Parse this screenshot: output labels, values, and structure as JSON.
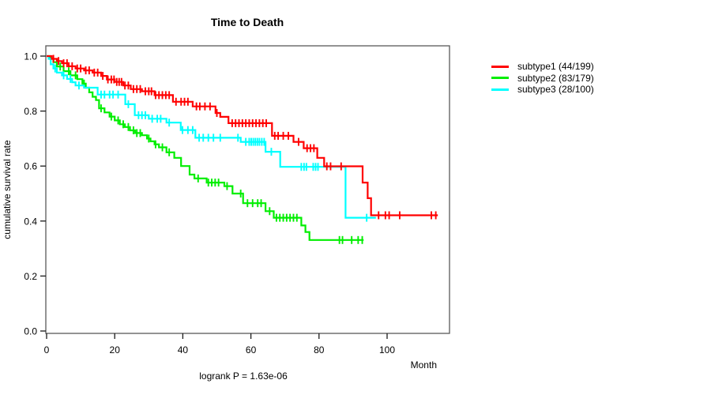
{
  "figure": {
    "title": "Time to Death",
    "annotation": "logrank P = 1.63e-06",
    "x_axis_unit": "Month"
  },
  "chart_data": {
    "type": "line",
    "subtype": "kaplan-meier-survival-steps",
    "title": "Time to Death",
    "xlabel": "Month",
    "ylabel": "cumulative survival rate",
    "annotation": "logrank P = 1.63e-06",
    "xlim": [
      0,
      118
    ],
    "ylim": [
      0.0,
      1.0
    ],
    "x_ticks": [
      0,
      20,
      40,
      60,
      80,
      100
    ],
    "y_tick_labels": [
      "0.0",
      "0.2",
      "0.4",
      "0.6",
      "0.8",
      "1.0"
    ],
    "grid": false,
    "legend_position": "right-outside",
    "frame_color": "#595959",
    "tick_color": "#1a1a1a",
    "series": [
      {
        "name": "subtype1 (44/199)",
        "color": "#ff0000",
        "events": 44,
        "n": 199,
        "steps": [
          [
            0,
            1.0
          ],
          [
            1.5,
            0.99
          ],
          [
            3,
            0.982
          ],
          [
            4.5,
            0.974
          ],
          [
            6.5,
            0.963
          ],
          [
            8.5,
            0.955
          ],
          [
            11,
            0.948
          ],
          [
            13.5,
            0.94
          ],
          [
            16,
            0.928
          ],
          [
            17.7,
            0.915
          ],
          [
            20,
            0.906
          ],
          [
            22.5,
            0.893
          ],
          [
            24.7,
            0.88
          ],
          [
            28,
            0.872
          ],
          [
            31.7,
            0.858
          ],
          [
            37.1,
            0.834
          ],
          [
            42.9,
            0.817
          ],
          [
            49.6,
            0.793
          ],
          [
            51,
            0.779
          ],
          [
            53.4,
            0.756
          ],
          [
            66.2,
            0.71
          ],
          [
            72.5,
            0.688
          ],
          [
            75.5,
            0.665
          ],
          [
            79.5,
            0.63
          ],
          [
            81.5,
            0.599
          ],
          [
            92.8,
            0.54
          ],
          [
            94.3,
            0.483
          ],
          [
            95.3,
            0.421
          ],
          [
            114.9,
            0.421
          ]
        ],
        "censors": [
          2,
          3.5,
          5,
          6,
          7.5,
          9,
          10,
          11.5,
          12.5,
          14,
          15,
          16.5,
          18,
          19,
          19.8,
          20.6,
          21.3,
          22,
          23,
          24,
          25.5,
          26.5,
          27.5,
          29,
          30,
          30.8,
          32,
          33,
          34,
          35,
          36,
          38,
          39.5,
          40.5,
          41.5,
          44,
          45,
          46.5,
          48,
          50,
          54.5,
          55.5,
          56.5,
          57.5,
          58.5,
          59.5,
          60.5,
          61.5,
          62.5,
          63.5,
          64.5,
          67,
          68,
          69.5,
          71,
          74,
          76.5,
          77.5,
          78.5,
          82.3,
          83.4,
          86.5,
          97.5,
          99.5,
          100.6,
          103.7,
          113,
          114.3
        ]
      },
      {
        "name": "subtype2 (83/179)",
        "color": "#00ee00",
        "events": 83,
        "n": 179,
        "steps": [
          [
            0,
            1.0
          ],
          [
            1,
            0.99
          ],
          [
            2,
            0.978
          ],
          [
            3,
            0.962
          ],
          [
            5,
            0.945
          ],
          [
            7,
            0.93
          ],
          [
            9,
            0.916
          ],
          [
            10.5,
            0.9
          ],
          [
            11.5,
            0.885
          ],
          [
            12.5,
            0.868
          ],
          [
            13.5,
            0.852
          ],
          [
            14.5,
            0.84
          ],
          [
            15.4,
            0.81
          ],
          [
            17,
            0.795
          ],
          [
            18.5,
            0.78
          ],
          [
            20,
            0.766
          ],
          [
            21.5,
            0.752
          ],
          [
            23,
            0.742
          ],
          [
            24.5,
            0.73
          ],
          [
            26,
            0.72
          ],
          [
            28,
            0.712
          ],
          [
            29.5,
            0.7
          ],
          [
            30.5,
            0.69
          ],
          [
            31.7,
            0.679
          ],
          [
            33,
            0.668
          ],
          [
            35.2,
            0.65
          ],
          [
            37.5,
            0.63
          ],
          [
            39.5,
            0.6
          ],
          [
            42,
            0.569
          ],
          [
            43.4,
            0.555
          ],
          [
            47,
            0.54
          ],
          [
            52.2,
            0.527
          ],
          [
            54.6,
            0.5
          ],
          [
            57.7,
            0.465
          ],
          [
            64.3,
            0.436
          ],
          [
            66.7,
            0.412
          ],
          [
            74.8,
            0.384
          ],
          [
            76,
            0.36
          ],
          [
            77.2,
            0.331
          ],
          [
            93.1,
            0.331
          ]
        ],
        "censors": [
          4,
          6.5,
          8.5,
          11,
          16,
          19,
          21,
          22.5,
          24,
          25.5,
          26.5,
          27.5,
          30,
          32,
          34,
          36,
          44.5,
          47.5,
          48.5,
          49.5,
          50.5,
          53,
          57,
          59,
          60.5,
          62,
          63,
          65.5,
          67.5,
          68.5,
          69.5,
          70.5,
          71.5,
          72.5,
          73.5,
          86,
          86.9,
          89.6,
          91.5,
          92.7
        ]
      },
      {
        "name": "subtype3 (28/100)",
        "color": "#00ffff",
        "events": 28,
        "n": 100,
        "steps": [
          [
            0,
            1.0
          ],
          [
            0.6,
            0.99
          ],
          [
            1.2,
            0.97
          ],
          [
            2,
            0.955
          ],
          [
            3,
            0.94
          ],
          [
            4.5,
            0.93
          ],
          [
            6,
            0.917
          ],
          [
            7.5,
            0.905
          ],
          [
            8.5,
            0.893
          ],
          [
            11,
            0.885
          ],
          [
            15,
            0.86
          ],
          [
            23.1,
            0.825
          ],
          [
            25.9,
            0.785
          ],
          [
            30,
            0.772
          ],
          [
            35.2,
            0.758
          ],
          [
            39.4,
            0.731
          ],
          [
            43.7,
            0.703
          ],
          [
            57,
            0.688
          ],
          [
            64.3,
            0.652
          ],
          [
            68.6,
            0.597
          ],
          [
            87.8,
            0.412
          ],
          [
            96.7,
            0.412
          ]
        ],
        "censors": [
          2.5,
          5,
          7,
          9.5,
          16,
          17,
          18.5,
          19.5,
          21,
          24,
          27,
          28,
          29,
          31,
          32.5,
          33.5,
          36,
          39.9,
          41.5,
          42.9,
          44.8,
          46,
          47.5,
          49,
          51,
          56.2,
          58.5,
          59.5,
          60.1,
          60.7,
          61.3,
          61.9,
          62.5,
          63.2,
          63.9,
          66,
          74.8,
          75.6,
          76.3,
          78.3,
          79,
          79.7,
          94
        ]
      }
    ]
  },
  "legend": {
    "items": [
      {
        "label": "subtype1 (44/199)",
        "color": "#ff0000"
      },
      {
        "label": "subtype2 (83/179)",
        "color": "#00ee00"
      },
      {
        "label": "subtype3 (28/100)",
        "color": "#00ffff"
      }
    ]
  }
}
